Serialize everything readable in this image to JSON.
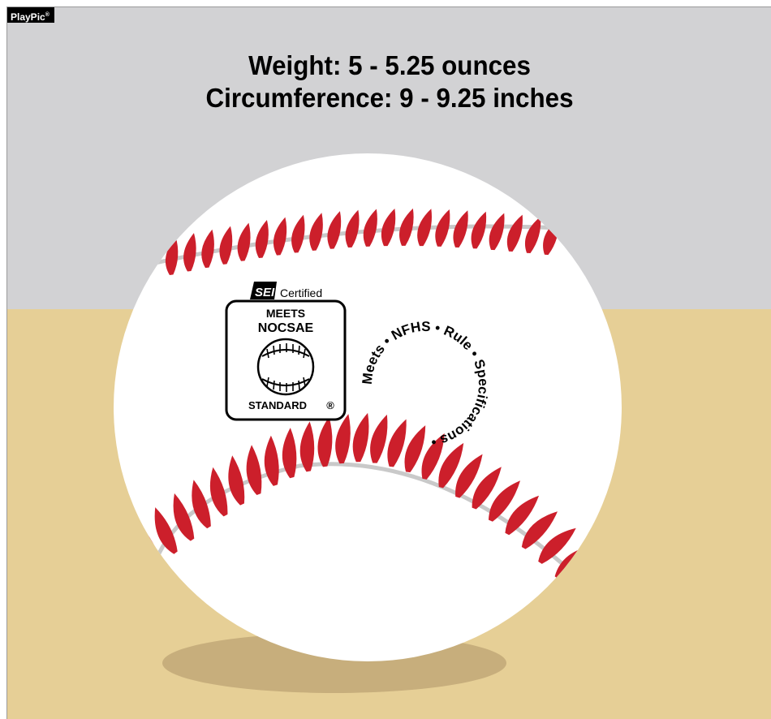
{
  "badge": {
    "brand": "PlayPic",
    "mark": "®"
  },
  "spec": {
    "weight": "Weight: 5 - 5.25 ounces",
    "circumference": "Circumference: 9 - 9.25 inches"
  },
  "certification": {
    "sei_logo": "SEI",
    "sei_certified": "Certified",
    "meets": "MEETS",
    "nocsae": "NOCSAE",
    "standard": "STANDARD",
    "registered": "®"
  },
  "nfhs_seal": {
    "text": "Meets • NFHS • Rule • Specifications •"
  },
  "colors": {
    "sky": "#d2d2d4",
    "ground": "#e6cf96",
    "ball": "#ffffff",
    "stitch": "#cc1f2b",
    "seam": "#c9c9c9",
    "shadow": "#c7ae7c"
  }
}
